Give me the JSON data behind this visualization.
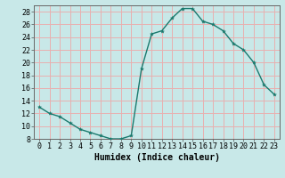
{
  "x": [
    0,
    1,
    2,
    3,
    4,
    5,
    6,
    7,
    8,
    9,
    10,
    11,
    12,
    13,
    14,
    15,
    16,
    17,
    18,
    19,
    20,
    21,
    22,
    23
  ],
  "y": [
    13,
    12,
    11.5,
    10.5,
    9.5,
    9,
    8.5,
    8,
    8,
    8.5,
    19,
    24.5,
    25,
    27,
    28.5,
    28.5,
    26.5,
    26,
    25,
    23,
    22,
    20,
    16.5,
    15
  ],
  "bg_color": "#c8e8e8",
  "grid_color_major": "#e8b0b0",
  "grid_color_minor": "#ffffff",
  "line_color": "#1a7a6e",
  "marker_color": "#1a7a6e",
  "xlabel": "Humidex (Indice chaleur)",
  "ylim": [
    8,
    29
  ],
  "xlim": [
    -0.5,
    23.5
  ],
  "yticks": [
    8,
    10,
    12,
    14,
    16,
    18,
    20,
    22,
    24,
    26,
    28
  ],
  "xticks": [
    0,
    1,
    2,
    3,
    4,
    5,
    6,
    7,
    8,
    9,
    10,
    11,
    12,
    13,
    14,
    15,
    16,
    17,
    18,
    19,
    20,
    21,
    22,
    23
  ],
  "label_fontsize": 7,
  "tick_fontsize": 6
}
